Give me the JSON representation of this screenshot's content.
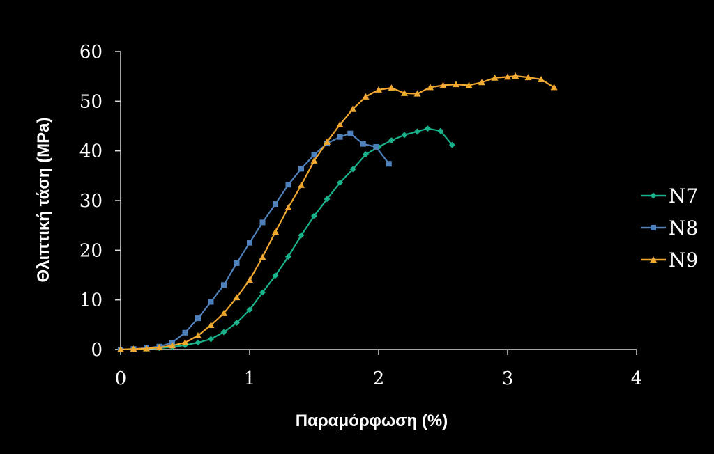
{
  "chart_data": {
    "type": "line",
    "xlabel": "Παραμόρφωση (%)",
    "ylabel": "Θλιπτική τάση  (MPa)",
    "xlim": [
      0,
      4
    ],
    "ylim": [
      0,
      60
    ],
    "xticks": [
      0,
      1,
      2,
      3,
      4
    ],
    "yticks": [
      0,
      10,
      20,
      30,
      40,
      50,
      60
    ],
    "x_tick_labels": [
      "0",
      "1",
      "2",
      "3",
      "4"
    ],
    "y_tick_labels": [
      "0",
      "10",
      "20",
      "30",
      "40",
      "50",
      "60"
    ],
    "grid": false,
    "legend_position": "right",
    "series": [
      {
        "name": "N7",
        "color": "#1ab28a",
        "marker": "diamond",
        "points": [
          [
            0,
            0
          ],
          [
            0.1,
            0.1
          ],
          [
            0.2,
            0.2
          ],
          [
            0.3,
            0.3
          ],
          [
            0.4,
            0.5
          ],
          [
            0.5,
            0.9
          ],
          [
            0.6,
            1.4
          ],
          [
            0.7,
            2.1
          ],
          [
            0.8,
            3.5
          ],
          [
            0.9,
            5.4
          ],
          [
            1.0,
            8.0
          ],
          [
            1.1,
            11.5
          ],
          [
            1.2,
            14.9
          ],
          [
            1.3,
            18.7
          ],
          [
            1.4,
            23.0
          ],
          [
            1.5,
            26.9
          ],
          [
            1.6,
            30.3
          ],
          [
            1.7,
            33.6
          ],
          [
            1.8,
            36.3
          ],
          [
            1.9,
            39.3
          ],
          [
            2.0,
            40.8
          ],
          [
            2.1,
            42.1
          ],
          [
            2.2,
            43.2
          ],
          [
            2.3,
            43.9
          ],
          [
            2.38,
            44.5
          ],
          [
            2.48,
            44.0
          ],
          [
            2.57,
            41.2
          ]
        ]
      },
      {
        "name": "N8",
        "color": "#4f81bd",
        "marker": "square",
        "points": [
          [
            0,
            0
          ],
          [
            0.1,
            0.1
          ],
          [
            0.2,
            0.3
          ],
          [
            0.3,
            0.6
          ],
          [
            0.4,
            1.4
          ],
          [
            0.5,
            3.4
          ],
          [
            0.6,
            6.3
          ],
          [
            0.7,
            9.6
          ],
          [
            0.8,
            13.0
          ],
          [
            0.9,
            17.4
          ],
          [
            1.0,
            21.5
          ],
          [
            1.1,
            25.6
          ],
          [
            1.2,
            29.3
          ],
          [
            1.3,
            33.2
          ],
          [
            1.4,
            36.4
          ],
          [
            1.5,
            39.2
          ],
          [
            1.6,
            41.5
          ],
          [
            1.7,
            42.8
          ],
          [
            1.78,
            43.5
          ],
          [
            1.88,
            41.4
          ],
          [
            1.98,
            40.8
          ],
          [
            2.08,
            37.4
          ]
        ]
      },
      {
        "name": "N9",
        "color": "#f0a830",
        "marker": "triangle",
        "points": [
          [
            0,
            0
          ],
          [
            0.1,
            0.1
          ],
          [
            0.2,
            0.2
          ],
          [
            0.3,
            0.4
          ],
          [
            0.4,
            0.8
          ],
          [
            0.5,
            1.4
          ],
          [
            0.6,
            2.8
          ],
          [
            0.7,
            4.9
          ],
          [
            0.8,
            7.3
          ],
          [
            0.9,
            10.5
          ],
          [
            1.0,
            14.0
          ],
          [
            1.1,
            18.6
          ],
          [
            1.2,
            23.7
          ],
          [
            1.3,
            28.6
          ],
          [
            1.4,
            33.1
          ],
          [
            1.5,
            38.0
          ],
          [
            1.6,
            41.8
          ],
          [
            1.7,
            45.3
          ],
          [
            1.8,
            48.4
          ],
          [
            1.9,
            50.9
          ],
          [
            2.0,
            52.3
          ],
          [
            2.1,
            52.7
          ],
          [
            2.2,
            51.6
          ],
          [
            2.3,
            51.5
          ],
          [
            2.4,
            52.8
          ],
          [
            2.5,
            53.2
          ],
          [
            2.6,
            53.4
          ],
          [
            2.7,
            53.2
          ],
          [
            2.8,
            53.8
          ],
          [
            2.9,
            54.7
          ],
          [
            3.0,
            54.9
          ],
          [
            3.06,
            55.1
          ],
          [
            3.16,
            54.8
          ],
          [
            3.26,
            54.4
          ],
          [
            3.36,
            52.8
          ]
        ]
      }
    ]
  }
}
